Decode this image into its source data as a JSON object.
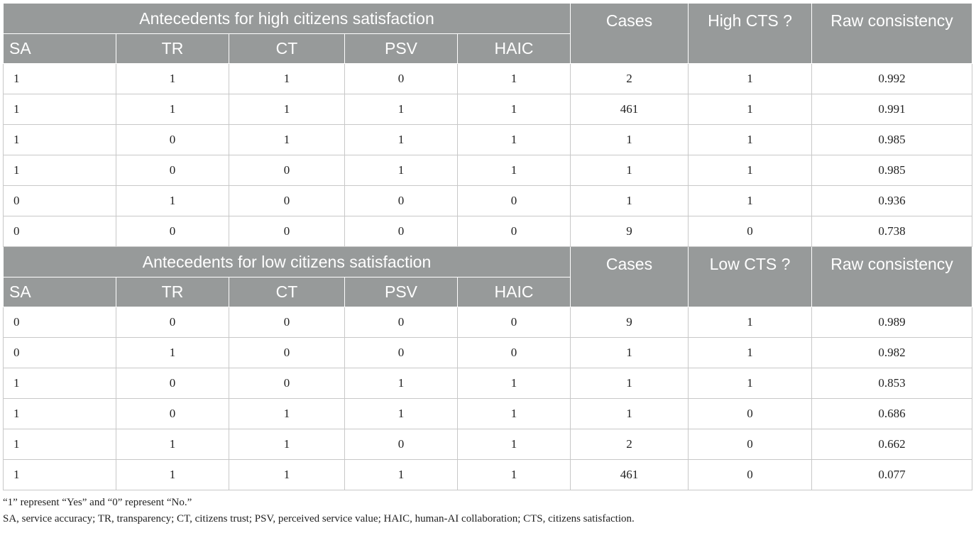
{
  "high": {
    "group_title": "Antecedents for high citizens satisfaction",
    "cases_label": "Cases",
    "outcome_label": "High CTS ?",
    "consistency_label": "Raw consistency",
    "columns": [
      "SA",
      "TR",
      "CT",
      "PSV",
      "HAIC"
    ],
    "rows": [
      [
        "1",
        "1",
        "1",
        "0",
        "1",
        "2",
        "1",
        "0.992"
      ],
      [
        "1",
        "1",
        "1",
        "1",
        "1",
        "461",
        "1",
        "0.991"
      ],
      [
        "1",
        "0",
        "1",
        "1",
        "1",
        "1",
        "1",
        "0.985"
      ],
      [
        "1",
        "0",
        "0",
        "1",
        "1",
        "1",
        "1",
        "0.985"
      ],
      [
        "0",
        "1",
        "0",
        "0",
        "0",
        "1",
        "1",
        "0.936"
      ],
      [
        "0",
        "0",
        "0",
        "0",
        "0",
        "9",
        "0",
        "0.738"
      ]
    ]
  },
  "low": {
    "group_title": "Antecedents for low citizens satisfaction",
    "cases_label": "Cases",
    "outcome_label": "Low CTS ?",
    "consistency_label": "Raw consistency",
    "columns": [
      "SA",
      "TR",
      "CT",
      "PSV",
      "HAIC"
    ],
    "rows": [
      [
        "0",
        "0",
        "0",
        "0",
        "0",
        "9",
        "1",
        "0.989"
      ],
      [
        "0",
        "1",
        "0",
        "0",
        "0",
        "1",
        "1",
        "0.982"
      ],
      [
        "1",
        "0",
        "0",
        "1",
        "1",
        "1",
        "1",
        "0.853"
      ],
      [
        "1",
        "0",
        "1",
        "1",
        "1",
        "1",
        "0",
        "0.686"
      ],
      [
        "1",
        "1",
        "1",
        "0",
        "1",
        "2",
        "0",
        "0.662"
      ],
      [
        "1",
        "1",
        "1",
        "1",
        "1",
        "461",
        "0",
        "0.077"
      ]
    ]
  },
  "footnotes": [
    "“1” represent “Yes” and “0” represent “No.”",
    "SA, service accuracy; TR, transparency; CT, citizens trust; PSV, perceived service value; HAIC, human-AI collaboration; CTS, citizens satisfaction."
  ]
}
